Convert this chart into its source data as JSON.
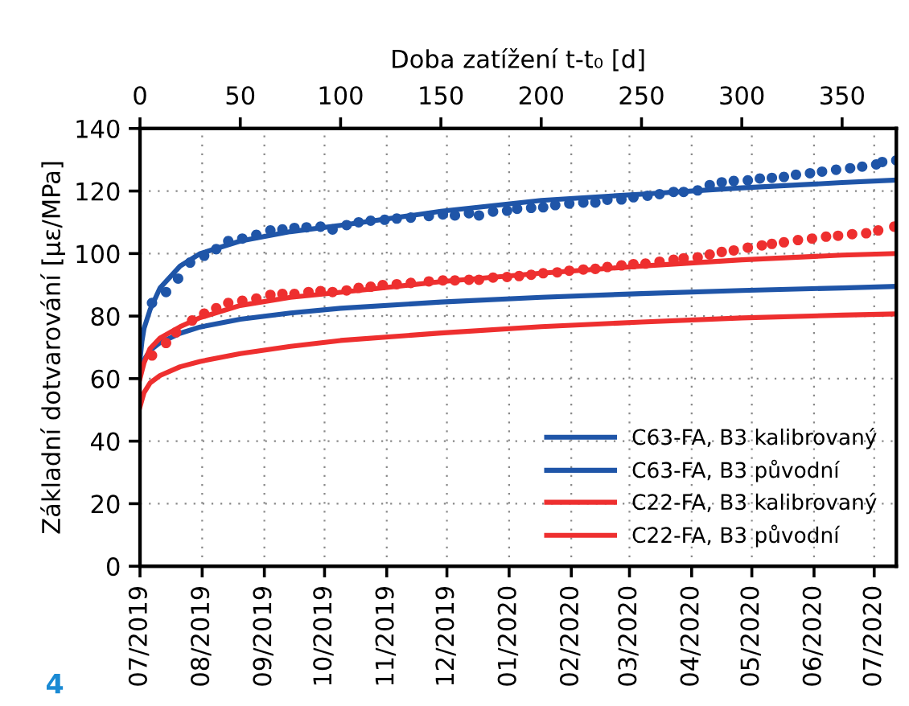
{
  "chart_data": {
    "type": "line",
    "x2label": "Doba zatížení t-t₀ [d]",
    "ylabel": "Základní dotvarování [με/MPa]",
    "annotations": [
      "4"
    ],
    "xlim": [
      "2019-07-01",
      "2020-07-12"
    ],
    "x2lim": [
      0,
      377
    ],
    "xticks": [
      {
        "value": "2019-07",
        "label": "07/2019"
      },
      {
        "value": "2019-08",
        "label": "08/2019"
      },
      {
        "value": "2019-09",
        "label": "09/2019"
      },
      {
        "value": "2019-10",
        "label": "10/2019"
      },
      {
        "value": "2019-11",
        "label": "11/2019"
      },
      {
        "value": "2019-12",
        "label": "12/2019"
      },
      {
        "value": "2020-01",
        "label": "01/2020"
      },
      {
        "value": "2020-02",
        "label": "02/2020"
      },
      {
        "value": "2020-03",
        "label": "03/2020"
      },
      {
        "value": "2020-04",
        "label": "04/2020"
      },
      {
        "value": "2020-05",
        "label": "05/2020"
      },
      {
        "value": "2020-06",
        "label": "06/2020"
      },
      {
        "value": "2020-07",
        "label": "07/2020"
      }
    ],
    "x2ticks": [
      0,
      50,
      100,
      150,
      200,
      250,
      300,
      350
    ],
    "ylim": [
      0,
      140
    ],
    "yticks": [
      0,
      20,
      40,
      60,
      80,
      100,
      120,
      140
    ],
    "grid": true,
    "legend": "bottom right",
    "series": [
      {
        "type": "scatter",
        "marker": "circle",
        "color": "#1f55a8",
        "x": [
          "2019-07-07",
          "2019-07-14",
          "2019-07-20",
          "2019-07-26",
          "2019-08-02",
          "2019-08-08",
          "2019-08-14",
          "2019-08-21",
          "2019-08-28",
          "2019-09-04",
          "2019-09-10",
          "2019-09-16",
          "2019-09-22",
          "2019-09-29",
          "2019-10-05",
          "2019-10-12",
          "2019-10-18",
          "2019-10-24",
          "2019-10-31",
          "2019-11-06",
          "2019-11-13",
          "2019-11-22",
          "2019-11-29",
          "2019-12-05",
          "2019-12-12",
          "2019-12-17",
          "2019-12-24",
          "2019-12-31",
          "2020-01-05",
          "2020-01-12",
          "2020-01-18",
          "2020-01-24",
          "2020-01-31",
          "2020-02-07",
          "2020-02-13",
          "2020-02-19",
          "2020-02-26",
          "2020-03-03",
          "2020-03-10",
          "2020-03-16",
          "2020-03-23",
          "2020-03-28",
          "2020-04-04",
          "2020-04-10",
          "2020-04-16",
          "2020-04-22",
          "2020-04-29",
          "2020-05-05",
          "2020-05-11",
          "2020-05-17",
          "2020-05-23",
          "2020-05-30",
          "2020-06-05",
          "2020-06-12",
          "2020-06-19",
          "2020-06-25",
          "2020-07-02",
          "2020-07-05",
          "2020-07-12"
        ],
        "values": [
          84.2,
          87.7,
          92,
          97.1,
          99.3,
          101.4,
          104,
          104.8,
          106,
          107.4,
          107.7,
          108.2,
          108.4,
          108.6,
          107.7,
          109.1,
          110,
          110.5,
          110.8,
          111.2,
          111.5,
          112,
          112.5,
          112.2,
          112.9,
          112.2,
          113.4,
          113.7,
          114.3,
          114.6,
          114.8,
          115.5,
          116,
          116.3,
          116.3,
          117.2,
          117.3,
          118,
          118.5,
          119,
          119.7,
          119.7,
          120.2,
          121.9,
          122.8,
          123.2,
          123.4,
          124,
          124.2,
          124.5,
          125.2,
          125.7,
          126.2,
          126.8,
          127.3,
          127.8,
          128.5,
          129.3,
          129.8
        ]
      },
      {
        "type": "scatter",
        "marker": "circle",
        "color": "#ee2f2f",
        "x": [
          "2019-07-07",
          "2019-07-14",
          "2019-07-19",
          "2019-07-27",
          "2019-08-02",
          "2019-08-08",
          "2019-08-14",
          "2019-08-21",
          "2019-08-28",
          "2019-09-04",
          "2019-09-10",
          "2019-09-16",
          "2019-09-23",
          "2019-09-29",
          "2019-10-05",
          "2019-10-12",
          "2019-10-18",
          "2019-10-24",
          "2019-10-30",
          "2019-11-06",
          "2019-11-13",
          "2019-11-22",
          "2019-11-29",
          "2019-12-05",
          "2019-12-12",
          "2019-12-17",
          "2019-12-24",
          "2019-12-31",
          "2020-01-06",
          "2020-01-12",
          "2020-01-18",
          "2020-01-25",
          "2020-01-31",
          "2020-02-07",
          "2020-02-13",
          "2020-02-19",
          "2020-02-26",
          "2020-03-03",
          "2020-03-09",
          "2020-03-16",
          "2020-03-23",
          "2020-03-28",
          "2020-04-04",
          "2020-04-10",
          "2020-04-16",
          "2020-04-22",
          "2020-04-29",
          "2020-05-06",
          "2020-05-11",
          "2020-05-17",
          "2020-05-24",
          "2020-05-31",
          "2020-06-07",
          "2020-06-13",
          "2020-06-20",
          "2020-06-27",
          "2020-07-03",
          "2020-07-11"
        ],
        "values": [
          67.4,
          71.4,
          74.8,
          78.6,
          80.8,
          82.5,
          84.2,
          84.9,
          85.6,
          86.8,
          87.1,
          87.1,
          87.7,
          88,
          87.7,
          88.2,
          89,
          89.4,
          89.9,
          90.2,
          90.6,
          91.1,
          91.4,
          91.4,
          91.6,
          91.6,
          92.3,
          92.5,
          92.8,
          93.2,
          93.7,
          94,
          94.5,
          94.9,
          95.1,
          95.7,
          96.2,
          96.6,
          96.8,
          97.4,
          98,
          98.5,
          98.8,
          99.7,
          100.5,
          101,
          101.9,
          102.6,
          103.1,
          103.6,
          104.3,
          104.8,
          105.4,
          105.7,
          106.2,
          106.5,
          107.4,
          108.6
        ]
      },
      {
        "name": "C63-FA, B3 kalibrovaný",
        "color": "#1f55a8",
        "x": [
          "2019-07-01",
          "2019-07-02",
          "2019-07-03",
          "2019-07-06",
          "2019-07-11",
          "2019-07-21",
          "2019-07-31",
          "2019-08-20",
          "2019-09-14",
          "2019-10-09",
          "2019-11-28",
          "2020-01-17",
          "2020-03-07",
          "2020-04-26",
          "2020-06-15",
          "2020-07-12"
        ],
        "values": [
          66,
          72,
          76,
          82,
          89,
          96,
          100,
          104,
          107,
          109,
          113.5,
          117,
          119,
          121,
          122.7,
          123.5
        ]
      },
      {
        "name": "C63-FA, B3 původní",
        "color": "#1f55a8",
        "x": [
          "2019-07-01",
          "2019-07-03",
          "2019-07-06",
          "2019-07-11",
          "2019-07-21",
          "2019-07-31",
          "2019-08-20",
          "2019-09-14",
          "2019-10-09",
          "2019-11-28",
          "2020-01-17",
          "2020-03-07",
          "2020-04-26",
          "2020-06-15",
          "2020-07-12"
        ],
        "values": [
          62,
          66,
          69,
          71.5,
          74.5,
          76.5,
          79,
          81,
          82.5,
          84.5,
          86,
          87.2,
          88.2,
          89,
          89.5
        ]
      },
      {
        "name": "C22-FA, B3 kalibrovaný",
        "color": "#ee2f2f",
        "x": [
          "2019-07-01",
          "2019-07-03",
          "2019-07-06",
          "2019-07-11",
          "2019-07-21",
          "2019-07-31",
          "2019-08-20",
          "2019-09-14",
          "2019-10-09",
          "2019-11-28",
          "2020-01-17",
          "2020-03-07",
          "2020-04-26",
          "2020-06-15",
          "2020-07-12"
        ],
        "values": [
          60,
          65,
          69.6,
          73,
          76.6,
          79.5,
          83.4,
          86,
          87.6,
          91,
          93.7,
          96,
          98,
          99.5,
          100
        ]
      },
      {
        "name": "C22-FA, B3 původní",
        "color": "#ee2f2f",
        "x": [
          "2019-07-01",
          "2019-07-03",
          "2019-07-06",
          "2019-07-11",
          "2019-07-21",
          "2019-07-31",
          "2019-08-20",
          "2019-09-14",
          "2019-10-09",
          "2019-11-28",
          "2020-01-17",
          "2020-03-07",
          "2020-04-26",
          "2020-06-15",
          "2020-07-12"
        ],
        "values": [
          51,
          55.5,
          58.6,
          61,
          63.8,
          65.5,
          68,
          70.3,
          72.2,
          74.6,
          76.6,
          78.1,
          79.4,
          80.3,
          80.7
        ]
      }
    ]
  }
}
